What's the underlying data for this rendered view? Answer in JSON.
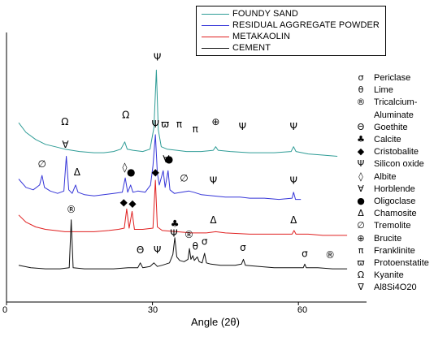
{
  "chart_data": {
    "type": "line",
    "xlabel": "Angle (2θ)",
    "ylabel": "",
    "xlim": [
      0,
      74
    ],
    "x_ticks": [
      "0",
      "30",
      "60"
    ],
    "grid": false,
    "legend_position": "top-right",
    "series": [
      {
        "name": "FOUNDY SAND",
        "color": "#2e9c96",
        "baseline": 4.8,
        "points": [
          [
            2.5,
            6.4
          ],
          [
            4,
            6.0
          ],
          [
            6,
            5.7
          ],
          [
            8,
            5.5
          ],
          [
            10,
            5.4
          ],
          [
            12,
            5.3
          ],
          [
            15,
            5.2
          ],
          [
            18,
            5.15
          ],
          [
            20,
            5.15
          ],
          [
            22,
            5.2
          ],
          [
            23.5,
            5.3
          ],
          [
            24.3,
            5.6
          ],
          [
            24.8,
            5.3
          ],
          [
            26,
            5.25
          ],
          [
            28,
            5.2
          ],
          [
            29.5,
            5.3
          ],
          [
            30.3,
            6.2
          ],
          [
            30.8,
            8.6
          ],
          [
            31.2,
            6.1
          ],
          [
            31.8,
            5.4
          ],
          [
            33,
            5.3
          ],
          [
            35,
            5.25
          ],
          [
            37,
            5.2
          ],
          [
            40,
            5.2
          ],
          [
            42.5,
            5.25
          ],
          [
            43,
            5.4
          ],
          [
            43.5,
            5.25
          ],
          [
            46,
            5.2
          ],
          [
            50,
            5.15
          ],
          [
            55,
            5.15
          ],
          [
            58.5,
            5.2
          ],
          [
            59,
            5.4
          ],
          [
            59.5,
            5.2
          ],
          [
            62,
            5.1
          ],
          [
            65,
            5.05
          ],
          [
            68,
            5.0
          ]
        ],
        "labels": [
          {
            "x": 12,
            "y": 6.3,
            "sym": "Ω"
          },
          {
            "x": 24.5,
            "y": 6.6,
            "sym": "Ω"
          },
          {
            "x": 31,
            "y": 9.0,
            "sym": "Ψ"
          },
          {
            "x": 32.6,
            "y": 6.2,
            "sym": "ϖ"
          },
          {
            "x": 35.5,
            "y": 6.2,
            "sym": "π"
          },
          {
            "x": 38.8,
            "y": 6.0,
            "sym": "π"
          },
          {
            "x": 43,
            "y": 6.3,
            "sym": "⊕"
          },
          {
            "x": 48.5,
            "y": 6.1,
            "sym": "Ψ"
          },
          {
            "x": 59,
            "y": 6.1,
            "sym": "Ψ"
          }
        ]
      },
      {
        "name": "RESIDUAL AGGREGATE POWDER",
        "color": "#3535d8",
        "baseline": 2.9,
        "points": [
          [
            2.5,
            4.05
          ],
          [
            4,
            3.7
          ],
          [
            5.5,
            3.6
          ],
          [
            6.8,
            3.8
          ],
          [
            7.3,
            4.2
          ],
          [
            7.8,
            3.7
          ],
          [
            9,
            3.55
          ],
          [
            10.5,
            3.45
          ],
          [
            11.8,
            3.55
          ],
          [
            12.3,
            5.0
          ],
          [
            12.8,
            3.6
          ],
          [
            13.5,
            3.45
          ],
          [
            14.2,
            3.8
          ],
          [
            14.7,
            3.5
          ],
          [
            16,
            3.4
          ],
          [
            18,
            3.35
          ],
          [
            20,
            3.4
          ],
          [
            22,
            3.45
          ],
          [
            23.8,
            3.5
          ],
          [
            24.4,
            4.1
          ],
          [
            24.9,
            3.5
          ],
          [
            25.5,
            3.8
          ],
          [
            26,
            3.5
          ],
          [
            27,
            3.55
          ],
          [
            28.5,
            3.5
          ],
          [
            29.6,
            3.8
          ],
          [
            30.1,
            4.6
          ],
          [
            30.6,
            5.9
          ],
          [
            31.0,
            4.3
          ],
          [
            31.4,
            3.8
          ],
          [
            32.2,
            4.4
          ],
          [
            32.6,
            3.7
          ],
          [
            33.2,
            4.4
          ],
          [
            33.6,
            3.6
          ],
          [
            34.5,
            3.45
          ],
          [
            36,
            3.5
          ],
          [
            37.5,
            3.55
          ],
          [
            38.5,
            3.5
          ],
          [
            40,
            3.4
          ],
          [
            42.5,
            3.35
          ],
          [
            45,
            3.3
          ],
          [
            48,
            3.3
          ],
          [
            50,
            3.25
          ],
          [
            53,
            3.25
          ],
          [
            56,
            3.2
          ],
          [
            58.7,
            3.25
          ],
          [
            59,
            3.5
          ],
          [
            59.4,
            3.2
          ],
          [
            60.5,
            3.2
          ]
        ],
        "labels": [
          {
            "x": 7.3,
            "y": 4.55,
            "sym": "∅"
          },
          {
            "x": 12.1,
            "y": 5.35,
            "sym": "∀"
          },
          {
            "x": 14.5,
            "y": 4.2,
            "sym": "Δ"
          },
          {
            "x": 24.3,
            "y": 4.4,
            "sym": "◊"
          },
          {
            "x": 25.6,
            "y": 4.2,
            "sym": "●"
          },
          {
            "x": 30.6,
            "y": 6.2,
            "sym": "Ψ"
          },
          {
            "x": 33.4,
            "y": 4.75,
            "sym": "●"
          },
          {
            "x": 32.8,
            "y": 4.75,
            "sym": "∀"
          },
          {
            "x": 36.5,
            "y": 3.95,
            "sym": "∅"
          },
          {
            "x": 42.5,
            "y": 3.85,
            "sym": "Ψ"
          },
          {
            "x": 59,
            "y": 3.85,
            "sym": "Ψ"
          }
        ]
      },
      {
        "name": "METAKAOLIN",
        "color": "#e02020",
        "baseline": 1.4,
        "points": [
          [
            2.5,
            2.55
          ],
          [
            4,
            2.25
          ],
          [
            6,
            2.05
          ],
          [
            8,
            1.95
          ],
          [
            10,
            1.9
          ],
          [
            12,
            1.85
          ],
          [
            15,
            1.85
          ],
          [
            18,
            1.85
          ],
          [
            21,
            1.9
          ],
          [
            23,
            1.95
          ],
          [
            24.2,
            2.0
          ],
          [
            24.7,
            2.8
          ],
          [
            25.2,
            2.0
          ],
          [
            25.8,
            2.7
          ],
          [
            26.3,
            1.95
          ],
          [
            28,
            1.95
          ],
          [
            30.1,
            2.0
          ],
          [
            30.6,
            4.0
          ],
          [
            31.0,
            2.05
          ],
          [
            32,
            1.9
          ],
          [
            35,
            1.85
          ],
          [
            38,
            1.8
          ],
          [
            41,
            1.8
          ],
          [
            43,
            1.85
          ],
          [
            45,
            1.8
          ],
          [
            50,
            1.75
          ],
          [
            55,
            1.75
          ],
          [
            58.7,
            1.75
          ],
          [
            59.1,
            1.9
          ],
          [
            59.5,
            1.75
          ],
          [
            62,
            1.75
          ],
          [
            65,
            1.7
          ],
          [
            70,
            1.7
          ]
        ],
        "labels": [
          {
            "x": 24.1,
            "y": 2.95,
            "sym": "◆"
          },
          {
            "x": 25.9,
            "y": 2.9,
            "sym": "◆"
          },
          {
            "x": 30.6,
            "y": 4.2,
            "sym": "◆"
          },
          {
            "x": 42.5,
            "y": 2.2,
            "sym": "Δ"
          },
          {
            "x": 59,
            "y": 2.2,
            "sym": "Δ"
          }
        ]
      },
      {
        "name": "CEMENT",
        "color": "#111111",
        "baseline": 0.0,
        "points": [
          [
            2.5,
            0.45
          ],
          [
            5,
            0.35
          ],
          [
            8,
            0.3
          ],
          [
            11,
            0.3
          ],
          [
            12.9,
            0.35
          ],
          [
            13.3,
            2.35
          ],
          [
            13.7,
            0.35
          ],
          [
            16,
            0.3
          ],
          [
            19,
            0.3
          ],
          [
            22,
            0.3
          ],
          [
            25,
            0.35
          ],
          [
            27,
            0.35
          ],
          [
            27.5,
            0.55
          ],
          [
            28,
            0.35
          ],
          [
            29.5,
            0.4
          ],
          [
            30.3,
            0.55
          ],
          [
            31,
            0.4
          ],
          [
            32,
            0.45
          ],
          [
            33.5,
            0.55
          ],
          [
            34.2,
            0.9
          ],
          [
            34.6,
            1.6
          ],
          [
            35.0,
            0.8
          ],
          [
            35.6,
            0.65
          ],
          [
            36.5,
            0.6
          ],
          [
            37.3,
            0.7
          ],
          [
            37.6,
            1.15
          ],
          [
            37.9,
            0.7
          ],
          [
            38.3,
            0.85
          ],
          [
            38.6,
            0.65
          ],
          [
            39.2,
            0.8
          ],
          [
            39.6,
            0.6
          ],
          [
            40.2,
            0.55
          ],
          [
            40.7,
            0.95
          ],
          [
            41.1,
            0.55
          ],
          [
            42,
            0.5
          ],
          [
            44,
            0.45
          ],
          [
            47,
            0.45
          ],
          [
            48.3,
            0.5
          ],
          [
            48.7,
            0.7
          ],
          [
            49.1,
            0.45
          ],
          [
            52,
            0.4
          ],
          [
            55,
            0.35
          ],
          [
            58,
            0.35
          ],
          [
            61,
            0.35
          ],
          [
            61.3,
            0.5
          ],
          [
            61.6,
            0.35
          ],
          [
            64,
            0.35
          ],
          [
            67,
            0.3
          ],
          [
            70,
            0.3
          ]
        ],
        "labels": [
          {
            "x": 13.3,
            "y": 2.65,
            "sym": "®"
          },
          {
            "x": 27.5,
            "y": 0.95,
            "sym": "Θ"
          },
          {
            "x": 31,
            "y": 0.95,
            "sym": "Ψ"
          },
          {
            "x": 34.4,
            "y": 1.65,
            "sym": "Ψ"
          },
          {
            "x": 34.6,
            "y": 2.05,
            "sym": "♣"
          },
          {
            "x": 37.5,
            "y": 1.6,
            "sym": "®"
          },
          {
            "x": 38.8,
            "y": 1.1,
            "sym": "θ"
          },
          {
            "x": 40.7,
            "y": 1.3,
            "sym": "σ"
          },
          {
            "x": 48.6,
            "y": 1.05,
            "sym": "σ"
          },
          {
            "x": 61.3,
            "y": 0.8,
            "sym": "σ"
          },
          {
            "x": 66.5,
            "y": 0.75,
            "sym": "®"
          }
        ]
      }
    ],
    "annotations": [
      {
        "x": 62.5,
        "y": 9.55,
        "sym": "∇"
      }
    ],
    "key": [
      {
        "sym": "σ",
        "label": "Periclase"
      },
      {
        "sym": "θ",
        "label": "Lime"
      },
      {
        "sym": "®",
        "label": "Tricalcium-"
      },
      {
        "sym": "",
        "label": "Aluminate"
      },
      {
        "sym": "Θ",
        "label": "Goethite"
      },
      {
        "sym": "♣",
        "label": "Calcite"
      },
      {
        "sym": "◆",
        "label": "Cristobalite"
      },
      {
        "sym": "Ψ",
        "label": "Silicon oxide"
      },
      {
        "sym": "◊",
        "label": "Albite"
      },
      {
        "sym": "∀",
        "label": "Horblende"
      },
      {
        "sym": "●",
        "label": "Oligoclase"
      },
      {
        "sym": "Δ",
        "label": "Chamosite"
      },
      {
        "sym": "∅",
        "label": "Tremolite"
      },
      {
        "sym": "⊕",
        "label": "Brucite"
      },
      {
        "sym": "π",
        "label": "Franklinite"
      },
      {
        "sym": "ϖ",
        "label": "Protoenstatite"
      },
      {
        "sym": "Ω",
        "label": "Kyanite"
      },
      {
        "sym": "∇",
        "label": "Al8Si4O20"
      }
    ]
  }
}
